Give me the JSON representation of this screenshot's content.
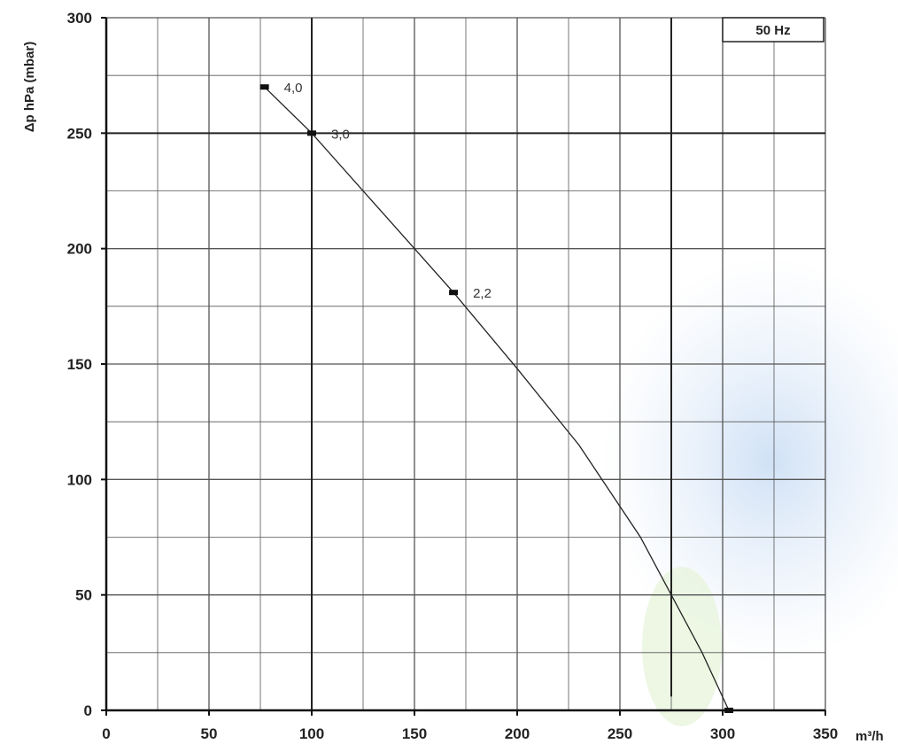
{
  "chart_data": {
    "type": "line",
    "ylabel": "Δp hPa (mbar)",
    "xlabel": "m³/h",
    "xlim": [
      0,
      350
    ],
    "ylim": [
      0,
      300
    ],
    "x_ticks": [
      0,
      50,
      100,
      150,
      200,
      250,
      300,
      350
    ],
    "y_ticks": [
      0,
      50,
      100,
      150,
      200,
      250,
      300
    ],
    "grid": true,
    "legend": {
      "text": "50 Hz",
      "placement": "top-right"
    },
    "series": [
      {
        "x": [
          77,
          100,
          130,
          169,
          200,
          230,
          260,
          275,
          290,
          303
        ],
        "y": [
          270,
          250,
          220,
          181,
          148,
          115,
          75,
          50,
          25,
          0
        ]
      }
    ],
    "points": [
      {
        "x": 77,
        "y": 270,
        "label": "4,0"
      },
      {
        "x": 100,
        "y": 250,
        "label": "3,0"
      },
      {
        "x": 169,
        "y": 181,
        "label": "2,2"
      },
      {
        "x": 303,
        "y": 0,
        "label": ""
      }
    ],
    "colors": {
      "grid": "#555555",
      "line": "#222222",
      "axis": "#111111"
    }
  }
}
